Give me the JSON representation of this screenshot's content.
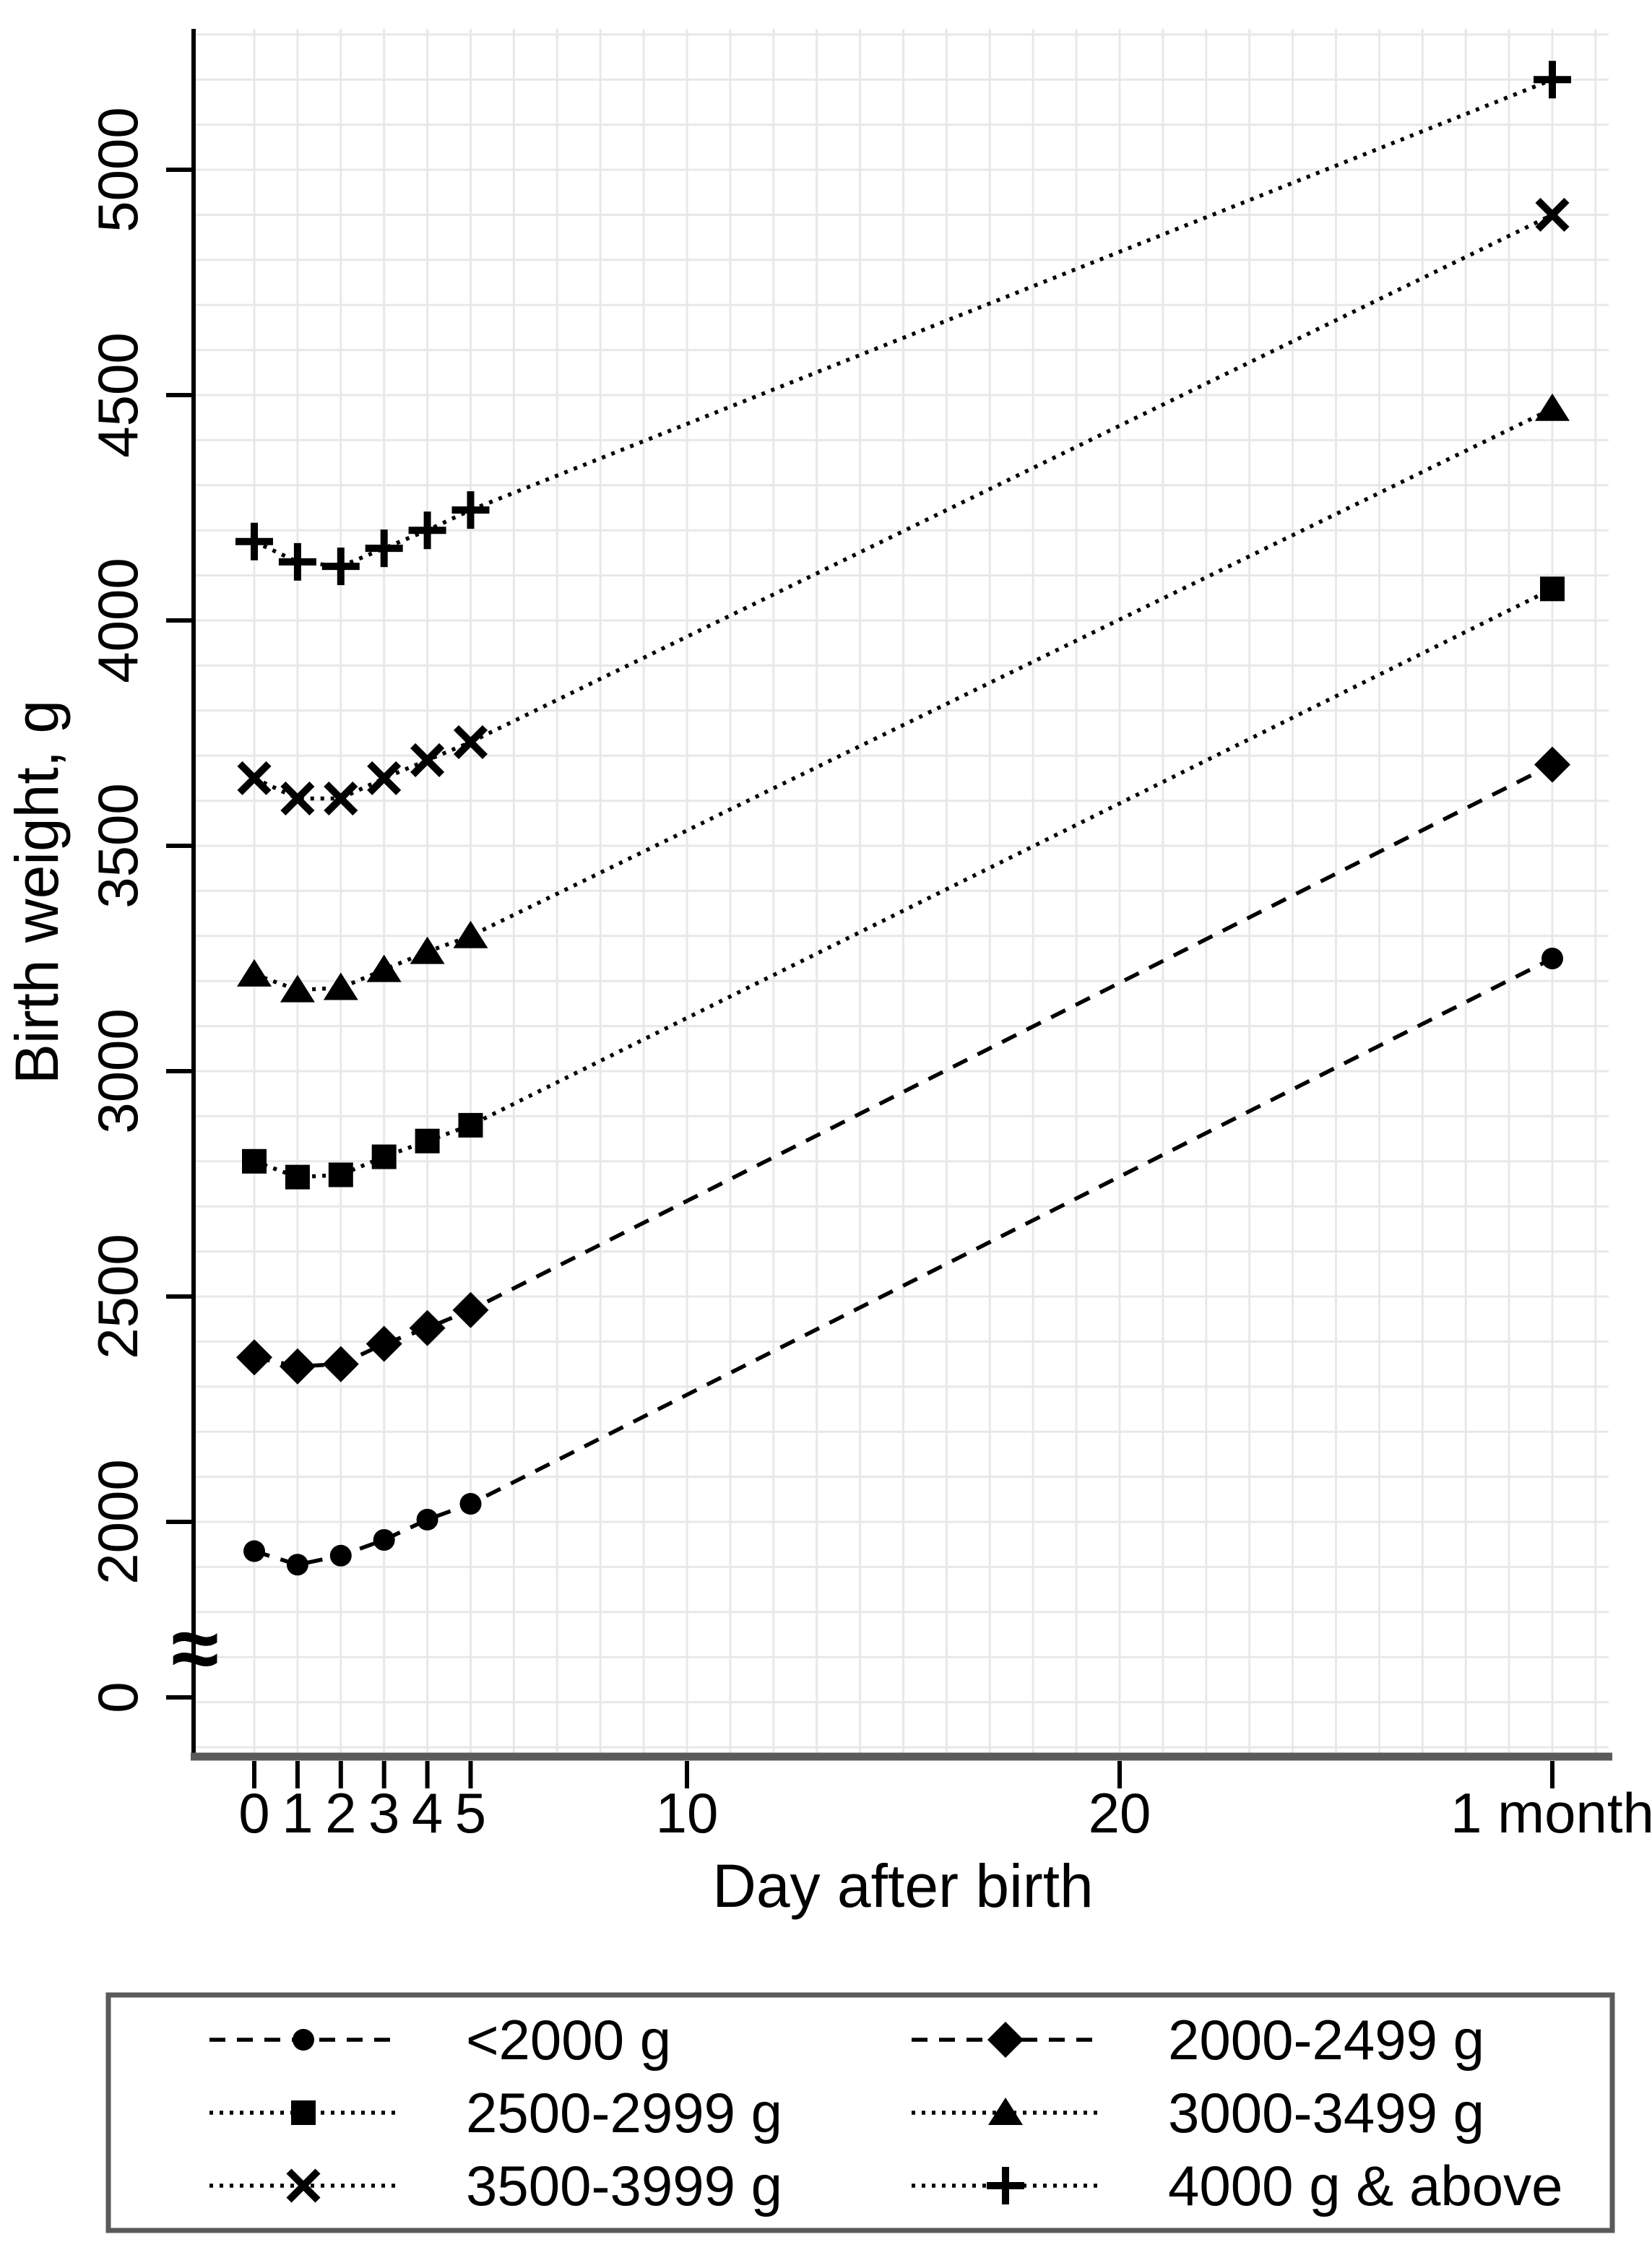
{
  "figure_title": "",
  "colors": {
    "background": "#ffffff",
    "series": "#000000",
    "gridline": "#e8e8e8",
    "y_axis_line": "#000000",
    "x_axis_line": "#5a5a5a",
    "tick_mark": "#000000",
    "legend_border": "#5a5a5a",
    "text": "#000000"
  },
  "chart_data": {
    "type": "line",
    "title": "",
    "xlabel": "Day after birth",
    "ylabel": "Birth weight, g",
    "x_days": [
      0,
      1,
      2,
      3,
      4,
      5,
      30
    ],
    "x_tick_days": [
      0,
      1,
      2,
      3,
      4,
      5,
      10,
      20,
      30
    ],
    "x_tick_labels": [
      "0",
      "1",
      "2",
      "3",
      "4",
      "5",
      "10",
      "20",
      "1 month"
    ],
    "y_ticks": [
      0,
      2000,
      2500,
      3000,
      3500,
      4000,
      4500,
      5000
    ],
    "y_range_shown": [
      1500,
      5300
    ],
    "y_axis_break": true,
    "axis_break_symbol": "≈",
    "grid": "both",
    "grid_spacing": {
      "x_days": 1,
      "y_grams": 100
    },
    "legend_position": "bottom",
    "series": [
      {
        "name": "<2000 g",
        "marker": "circle",
        "linestyle": "dashed",
        "values": [
          1935,
          1905,
          1925,
          1960,
          2005,
          2040,
          3250
        ]
      },
      {
        "name": "2000-2499 g",
        "marker": "diamond",
        "linestyle": "dashed",
        "values": [
          2365,
          2345,
          2350,
          2395,
          2430,
          2470,
          3680
        ]
      },
      {
        "name": "2500-2999 g",
        "marker": "square",
        "linestyle": "dotted",
        "values": [
          2800,
          2765,
          2770,
          2810,
          2845,
          2880,
          4070
        ]
      },
      {
        "name": "3000-3499 g",
        "marker": "triangle",
        "linestyle": "dotted",
        "values": [
          3215,
          3180,
          3185,
          3225,
          3265,
          3300,
          4470
        ]
      },
      {
        "name": "3500-3999 g",
        "marker": "x",
        "linestyle": "dotted",
        "values": [
          3650,
          3605,
          3605,
          3650,
          3690,
          3730,
          4900
        ]
      },
      {
        "name": "4000 g & above",
        "marker": "plus",
        "linestyle": "dotted",
        "values": [
          4175,
          4130,
          4120,
          4160,
          4200,
          4245,
          5200
        ]
      }
    ]
  }
}
